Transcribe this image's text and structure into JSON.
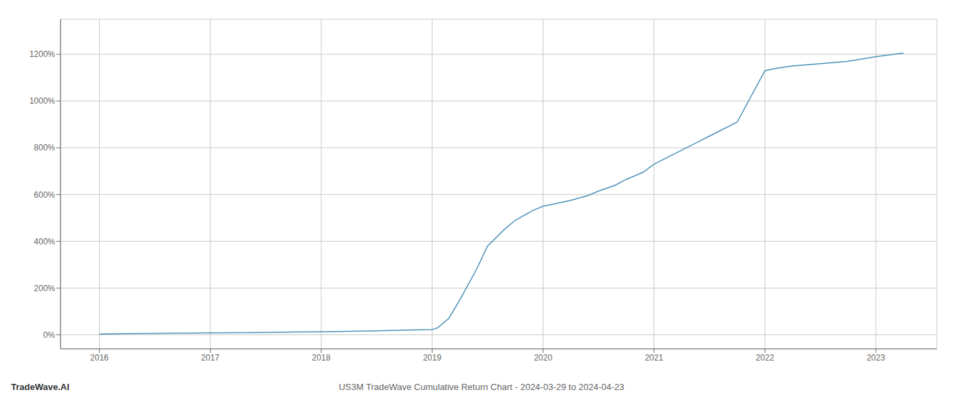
{
  "chart_data": {
    "type": "line",
    "title": "US3M TradeWave Cumulative Return Chart - 2024-03-29 to 2024-04-23",
    "annotations": [
      "TradeWave.AI"
    ],
    "x": [
      2016.0,
      2016.08,
      2016.25,
      2016.5,
      2016.75,
      2017.0,
      2017.25,
      2017.5,
      2017.75,
      2018.0,
      2018.25,
      2018.5,
      2018.75,
      2019.0,
      2019.05,
      2019.15,
      2019.25,
      2019.4,
      2019.5,
      2019.65,
      2019.75,
      2019.9,
      2020.0,
      2020.1,
      2020.25,
      2020.4,
      2020.5,
      2020.65,
      2020.75,
      2020.9,
      2021.0,
      2021.25,
      2021.5,
      2021.75,
      2022.0,
      2022.1,
      2022.25,
      2022.5,
      2022.75,
      2023.0,
      2023.25
    ],
    "values": [
      3,
      4,
      5,
      6,
      7,
      8,
      9,
      10,
      12,
      13,
      15,
      17,
      20,
      22,
      30,
      70,
      150,
      280,
      380,
      450,
      490,
      530,
      550,
      560,
      575,
      595,
      615,
      640,
      665,
      695,
      730,
      790,
      850,
      910,
      1130,
      1140,
      1150,
      1160,
      1170,
      1190,
      1205
    ],
    "color": "#4a90b8",
    "xlim": [
      2015.65,
      2023.55
    ],
    "ylim": [
      -60,
      1350
    ],
    "xticks": [
      2016,
      2017,
      2018,
      2019,
      2020,
      2021,
      2022,
      2023
    ],
    "yticks": [
      {
        "value": 0,
        "label": "0%"
      },
      {
        "value": 200,
        "label": "200%"
      },
      {
        "value": 400,
        "label": "400%"
      },
      {
        "value": 600,
        "label": "600%"
      },
      {
        "value": 800,
        "label": "800%"
      },
      {
        "value": 1000,
        "label": "1000%"
      },
      {
        "value": 1200,
        "label": "1200%"
      }
    ],
    "grid": true
  }
}
